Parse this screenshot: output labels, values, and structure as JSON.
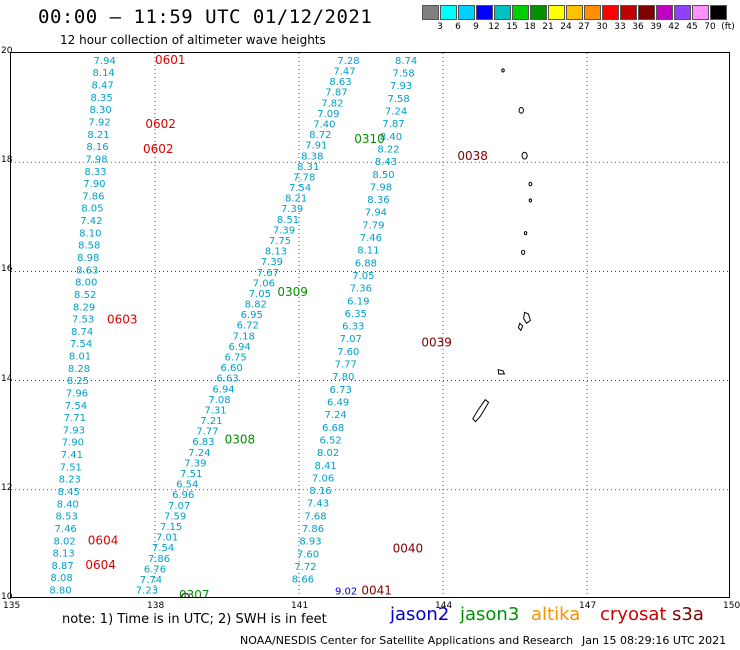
{
  "header": {
    "title": "00:00 — 11:59 UTC 01/12/2021",
    "subtitle": "12 hour collection of altimeter wave heights"
  },
  "colorbar": {
    "colors": [
      "#808080",
      "#00ffff",
      "#00cfff",
      "#0000ff",
      "#00c0c0",
      "#00d000",
      "#009000",
      "#ffff00",
      "#ffc000",
      "#ff9000",
      "#ff0000",
      "#c00000",
      "#800000",
      "#c000c0",
      "#9040ff",
      "#ff90ff",
      "#000000"
    ],
    "labels": [
      "3",
      "6",
      "9",
      "12",
      "15",
      "18",
      "21",
      "24",
      "27",
      "30",
      "33",
      "36",
      "39",
      "42",
      "45",
      "70"
    ],
    "unit": "(ft)"
  },
  "axes": {
    "x_ticks": [
      "135",
      "138",
      "141",
      "144",
      "147",
      "150"
    ],
    "y_ticks": [
      "20",
      "18",
      "16",
      "14",
      "12",
      "10"
    ]
  },
  "legend": {
    "note": "note:  1) Time is in UTC;  2) SWH is in feet",
    "satellites": [
      {
        "name": "jason2",
        "color": "#0000cc"
      },
      {
        "name": "jason3",
        "color": "#009000"
      },
      {
        "name": "altika",
        "color": "#ff9000"
      },
      {
        "name": "cryosat",
        "color": "#cc0000"
      },
      {
        "name": "s3a",
        "color": "#800000"
      }
    ]
  },
  "footer": {
    "credit": "NOAA/NESDIS Center for Satellite Applications and Research",
    "timestamp": "Jan 15 08:29:16 UTC 2021"
  },
  "tracks": [
    {
      "kind": "values",
      "color": "#00a0c8",
      "values": [
        "7.94",
        "8.14",
        "8.47",
        "8.35",
        "8.30",
        "7.92",
        "8.21",
        "8.16",
        "7.98",
        "8.33",
        "7.90",
        "7.86",
        "8.05",
        "7.42",
        "8.10",
        "8.58",
        "8.98",
        "8.63",
        "8.00",
        "8.52",
        "8.29",
        "7.53",
        "8.74",
        "7.54",
        "8.01",
        "8.28",
        "8.25",
        "7.96",
        "7.54",
        "7.71",
        "7.93",
        "7.90",
        "7.41",
        "7.51",
        "8.23",
        "8.45",
        "8.40",
        "8.53",
        "7.46",
        "8.02",
        "8.13",
        "8.87",
        "8.08",
        "8.80"
      ],
      "x_start": 136.72,
      "x_end": 135.8,
      "y_start": 19.8,
      "y_end": 10.1
    },
    {
      "kind": "values",
      "color": "#00a0c8",
      "values": [
        "7.28",
        "7.47",
        "8.63",
        "7.87",
        "7.82",
        "7.09",
        "7.40",
        "8.72",
        "7.91",
        "8.38",
        "8.31",
        "7.78",
        "7.54",
        "8.21",
        "7.39",
        "8.51",
        "7.39",
        "7.75",
        "8.13",
        "7.39",
        "7.67",
        "7.06",
        "7.05",
        "8.82",
        "6.95",
        "6.72",
        "7.18",
        "6.94",
        "6.75",
        "6.60",
        "6.63",
        "6.94",
        "7.08",
        "7.31",
        "7.21",
        "7.77",
        "6.83",
        "7.24",
        "7.39",
        "7.51",
        "6.54",
        "6.96",
        "7.07",
        "7.59",
        "7.15",
        "7.01",
        "7.54",
        "7.86",
        "6.76",
        "7.74",
        "7.23"
      ],
      "x_start": 141.8,
      "x_end": 137.6,
      "y_start": 19.8,
      "y_end": 10.1
    },
    {
      "kind": "values",
      "color": "#00a0c8",
      "values": [
        "8.74",
        "7.58",
        "7.93",
        "7.58",
        "7.24",
        "7.87",
        "8.40",
        "8.22",
        "8.43",
        "8.50",
        "7.98",
        "8.36",
        "7.94",
        "7.79",
        "7.46",
        "8.11",
        "6.88",
        "7.05",
        "7.36",
        "6.19",
        "6.35",
        "6.33",
        "7.07",
        "7.60",
        "7.77",
        "7.80",
        "6.73",
        "6.49",
        "7.24",
        "6.68",
        "6.52",
        "8.02",
        "8.41",
        "7.06",
        "8.16",
        "7.43",
        "7.68",
        "7.86",
        "8.93",
        "7.60",
        "7.72",
        "8.66"
      ],
      "x_start": 143.0,
      "x_end": 140.85,
      "y_start": 19.8,
      "y_end": 10.3
    },
    {
      "kind": "single",
      "color": "#0000cc",
      "values": [
        "9.02"
      ],
      "x": 141.75,
      "y": 10.08
    }
  ],
  "passes": [
    {
      "label": "0601",
      "color": "#dd0000",
      "x": 138.0,
      "y": 19.8
    },
    {
      "label": "0602",
      "color": "#dd0000",
      "x": 137.8,
      "y": 18.63
    },
    {
      "label": "0602",
      "color": "#dd0000",
      "x": 137.75,
      "y": 18.17
    },
    {
      "label": "0603",
      "color": "#dd0000",
      "x": 137.0,
      "y": 15.05
    },
    {
      "label": "0604",
      "color": "#dd0000",
      "x": 136.6,
      "y": 11.0
    },
    {
      "label": "0604",
      "color": "#dd0000",
      "x": 136.55,
      "y": 10.55
    },
    {
      "label": "0310",
      "color": "#009000",
      "x": 142.15,
      "y": 18.35
    },
    {
      "label": "0309",
      "color": "#009000",
      "x": 140.55,
      "y": 15.55
    },
    {
      "label": "0308",
      "color": "#009000",
      "x": 139.45,
      "y": 12.85
    },
    {
      "label": "0307",
      "color": "#009000",
      "x": 138.5,
      "y": 10.0
    },
    {
      "label": "0038",
      "color": "#800000",
      "x": 144.3,
      "y": 18.04
    },
    {
      "label": "0039",
      "color": "#800000",
      "x": 143.55,
      "y": 14.62
    },
    {
      "label": "0040",
      "color": "#800000",
      "x": 142.95,
      "y": 10.85
    },
    {
      "label": "0041",
      "color": "#800000",
      "x": 142.3,
      "y": 10.08
    }
  ]
}
